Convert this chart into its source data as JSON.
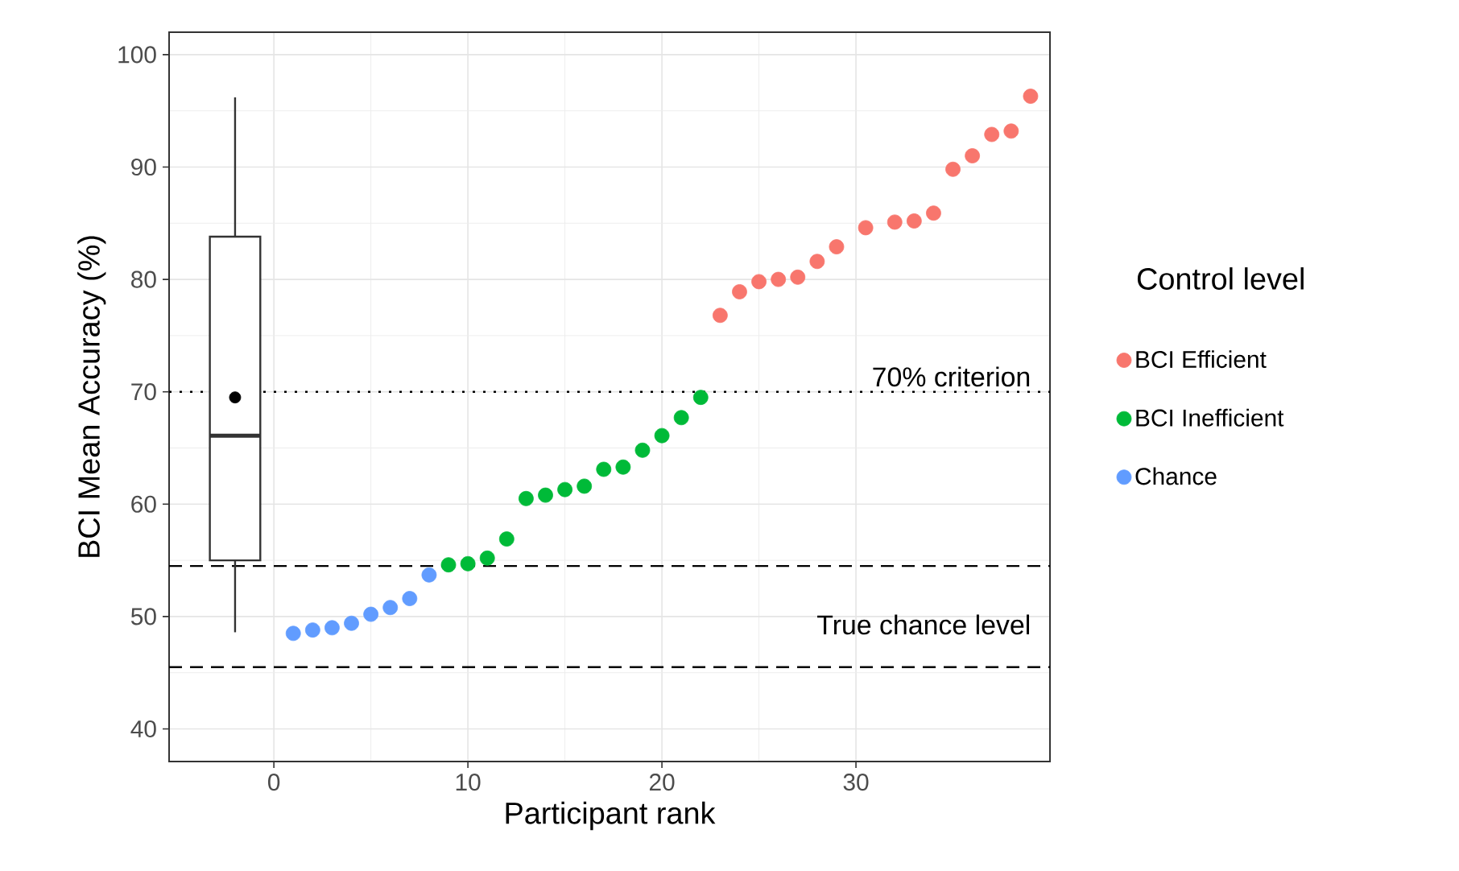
{
  "chart_data": {
    "type": "scatter",
    "xlabel": "Participant rank",
    "ylabel": "BCI Mean Accuracy (%)",
    "legend_title": "Control level",
    "legend": "right",
    "grid": true,
    "xlim": [
      -5.4,
      40.0
    ],
    "xticks": [
      0,
      10,
      20,
      30
    ],
    "ylim": [
      37.1,
      102.0
    ],
    "yticks": [
      40,
      50,
      60,
      70,
      80,
      90,
      100
    ],
    "series": [
      {
        "type": "box",
        "x": [
          -2
        ],
        "color": "#333333",
        "boxes": [
          {
            "low": 48.6,
            "q1": 55.0,
            "median": 66.1,
            "q3": 83.8,
            "high": 96.2,
            "mean": 69.5
          }
        ]
      },
      {
        "name": "BCI Efficient",
        "color": "#f8766d",
        "x": [
          23,
          24,
          25,
          26,
          27,
          28,
          29,
          30.5,
          32,
          33,
          34,
          35,
          36,
          37,
          38,
          39
        ],
        "values": [
          76.8,
          78.9,
          79.8,
          80.0,
          80.2,
          81.6,
          82.9,
          84.6,
          85.1,
          85.2,
          85.9,
          89.8,
          91.0,
          92.9,
          93.2,
          96.3
        ]
      },
      {
        "name": "BCI Inefficient",
        "color": "#00ba38",
        "x": [
          9,
          10,
          11,
          12,
          13,
          14,
          15,
          16,
          17,
          18,
          19,
          20,
          21,
          22
        ],
        "values": [
          54.6,
          54.7,
          55.2,
          56.9,
          60.5,
          60.8,
          61.3,
          61.6,
          63.1,
          63.3,
          64.8,
          66.1,
          67.7,
          69.5
        ]
      },
      {
        "name": "Chance",
        "color": "#619cff",
        "x": [
          1,
          2,
          3,
          4,
          5,
          6,
          7,
          8
        ],
        "values": [
          48.5,
          48.8,
          49.0,
          49.4,
          50.2,
          50.8,
          51.6,
          53.7
        ]
      }
    ],
    "ref_lines": [
      {
        "axis": "y",
        "value": 70,
        "label": "70% criterion",
        "line_style": "dotted"
      },
      {
        "axis": "y",
        "value": 54.5,
        "line_style": "dashed"
      },
      {
        "axis": "y",
        "value": 45.5,
        "label": "True chance level",
        "line_style": "dashed"
      }
    ]
  }
}
